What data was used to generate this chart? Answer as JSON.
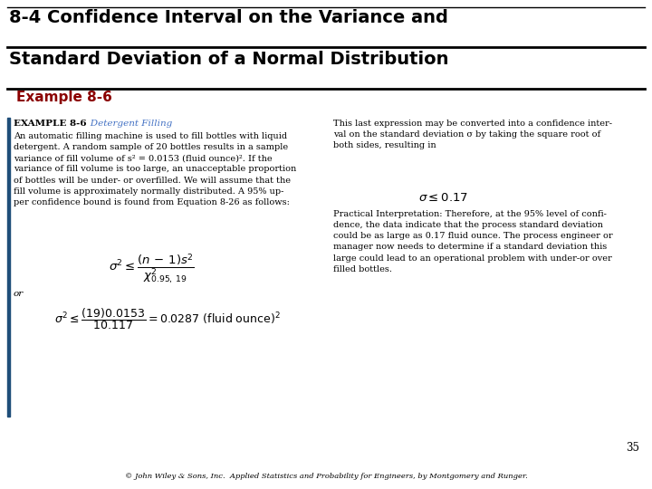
{
  "title_line1": "8-4 Confidence Interval on the Variance and",
  "title_line2": "Standard Deviation of a Normal Distribution",
  "example_label": "Example 8-6",
  "example_header": "EXAMPLE 8-6",
  "example_subtitle": "   Detergent Filling",
  "left_body": "An automatic filling machine is used to fill bottles with liquid\ndetergent. A random sample of 20 bottles results in a sample\nvariance of fill volume of s² = 0.0153 (fluid ounce)². If the\nvariance of fill volume is too large, an unacceptable proportion\nof bottles will be under- or overfilled. We will assume that the\nfill volume is approximately normally distributed. A 95% up-\nper confidence bound is found from Equation 8-26 as follows:",
  "right_body": "This last expression may be converted into a confidence inter-\nval on the standard deviation σ by taking the square root of\nboth sides, resulting in",
  "practical_text": "Practical Interpretation: Therefore, at the 95% level of confi-\ndence, the data indicate that the process standard deviation\ncould be as large as 0.17 fluid ounce. The process engineer or\nmanager now needs to determine if a standard deviation this\nlarge could lead to an operational problem with under-or over\nfilled bottles.",
  "footer_page": "35",
  "footer_citation": "© John Wiley & Sons, Inc.  Applied Statistics and Probability for Engineers, by Montgomery and Runger.",
  "bg_color": "#ffffff",
  "title_color": "#000000",
  "example_color": "#8B0000",
  "blue_color": "#4472C4",
  "left_bar_color": "#1F4E79"
}
